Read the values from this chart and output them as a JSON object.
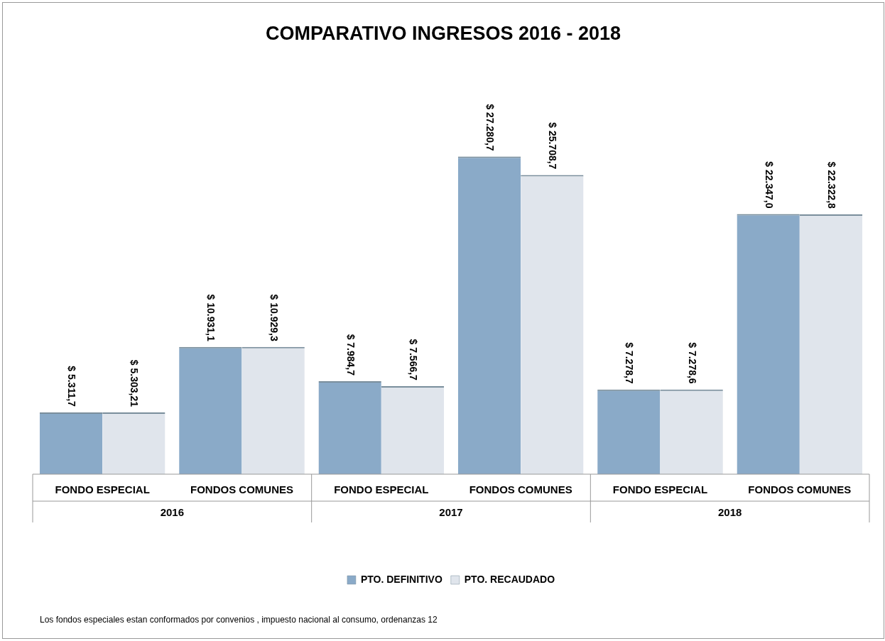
{
  "chart_data": {
    "type": "bar",
    "title": "COMPARATIVO INGRESOS  2016 - 2018",
    "categories": [
      "FONDO ESPECIAL",
      "FONDOS COMUNES",
      "FONDO ESPECIAL",
      "FONDOS COMUNES",
      "FONDO ESPECIAL",
      "FONDOS COMUNES"
    ],
    "series": [
      {
        "name": "PTO. DEFINITIVO",
        "color": "#8aaac8",
        "values": [
          5311.7,
          10931.1,
          7984.7,
          27280.7,
          7278.7,
          22347.0
        ],
        "value_labels": [
          "$ 5.311,7",
          "$ 10.931,1",
          "$ 7.984,7",
          "$ 27.280,7",
          "$ 7.278,7",
          "$ 22.347,0"
        ]
      },
      {
        "name": "PTO. RECAUDADO",
        "color": "#e0e5ec",
        "values": [
          5303.21,
          10929.3,
          7566.7,
          25708.7,
          7278.6,
          22322.8
        ],
        "value_labels": [
          "$ 5.303,21",
          "$ 10.929,3",
          "$ 7.566,7",
          "$ 25.708,7",
          "$ 7.278,6",
          "$ 22.322,8"
        ]
      }
    ],
    "annotations": [
      "2016",
      "2017",
      "2018",
      "Los fondos especiales estan conformados por convenios , impuesto nacional  al consumo, ordenanzas 12"
    ],
    "legend": "bottom",
    "grid": false
  }
}
